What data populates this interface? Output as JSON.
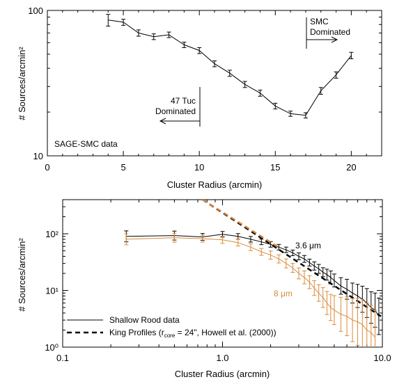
{
  "chart_data": [
    {
      "type": "line",
      "x_scale": "linear",
      "y_scale": "log",
      "xlim": [
        0,
        22
      ],
      "ylim": [
        10,
        100
      ],
      "xlabel": "Cluster Radius (arcmin)",
      "ylabel": "# Sources/arcmin²",
      "xticks": [
        "0",
        "5",
        "10",
        "15",
        "20"
      ],
      "yticks": [
        "10",
        "100"
      ],
      "series": [
        {
          "x": [
            4,
            5,
            6,
            7,
            8,
            9,
            10,
            11,
            12,
            13,
            14,
            15,
            16,
            17,
            18,
            19,
            20
          ],
          "y": [
            86,
            83,
            70,
            66,
            68,
            58,
            53,
            43,
            37,
            31,
            27,
            22,
            19.5,
            19,
            28,
            36,
            49
          ],
          "err": [
            8,
            4,
            3.5,
            3,
            3,
            2.5,
            2.5,
            2,
            1.8,
            1.5,
            1.3,
            1,
            0.8,
            0.8,
            1.5,
            1.8,
            2.5
          ],
          "color": "#000000"
        }
      ],
      "annotations": {
        "smc": [
          "SMC",
          "Dominated"
        ],
        "tuc": [
          "47 Tuc",
          "Dominated"
        ],
        "data_label": "SAGE-SMC data"
      }
    },
    {
      "type": "line",
      "x_scale": "log",
      "y_scale": "log",
      "xlim": [
        0.1,
        10
      ],
      "ylim": [
        1,
        400
      ],
      "xlabel": "Cluster Radius (arcmin)",
      "ylabel": "# Sources/arcmin²",
      "xticks": [
        "0.1",
        "1.0",
        "10.0"
      ],
      "yticks": [
        "10⁰",
        "10¹",
        "10²"
      ],
      "series": [
        {
          "name": "3.6 μm",
          "color": "#000000",
          "x": [
            0.25,
            0.5,
            0.75,
            1.0,
            1.25,
            1.5,
            1.75,
            2.0,
            2.25,
            2.5,
            2.75,
            3.0,
            3.25,
            3.5,
            3.75,
            4.0,
            4.25,
            4.5,
            4.75,
            5.0,
            5.5,
            6.0,
            6.5,
            7.0,
            7.5,
            8.0,
            8.5,
            9.0,
            9.5
          ],
          "y": [
            90,
            93,
            88,
            98,
            90,
            80,
            72,
            65,
            58,
            52,
            46,
            40,
            36,
            31,
            27,
            24,
            21,
            19,
            17,
            15,
            12,
            10.5,
            9,
            8,
            7,
            6,
            5,
            4.5,
            3.5
          ],
          "err_factor": [
            1.25,
            1.2,
            1.15,
            1.12,
            1.12,
            1.12,
            1.12,
            1.12,
            1.12,
            1.12,
            1.12,
            1.15,
            1.15,
            1.15,
            1.18,
            1.2,
            1.2,
            1.25,
            1.3,
            1.3,
            1.4,
            1.5,
            1.5,
            1.6,
            1.7,
            1.8,
            1.9,
            2.0,
            2.1
          ],
          "guide_x": [
            0.75,
            9.8
          ],
          "guide_y": [
            400,
            3.5
          ]
        },
        {
          "name": "8 μm",
          "color": "#d98a3a",
          "x": [
            0.25,
            0.5,
            0.75,
            1.0,
            1.25,
            1.5,
            1.75,
            2.0,
            2.25,
            2.5,
            2.75,
            3.0,
            3.25,
            3.5,
            3.75,
            4.0,
            4.25,
            4.5,
            4.75,
            5.0,
            5.5,
            6.0,
            6.5,
            7.0,
            7.5,
            8.0,
            8.5,
            9.0
          ],
          "y": [
            80,
            85,
            82,
            78,
            70,
            58,
            48,
            42,
            36,
            30,
            25,
            20,
            17,
            14,
            11,
            9,
            7.5,
            6,
            5,
            4.5,
            3.8,
            3.5,
            3,
            2.8,
            2.5,
            2,
            1.8,
            1.5
          ],
          "err_factor": [
            1.25,
            1.2,
            1.15,
            1.15,
            1.15,
            1.15,
            1.15,
            1.18,
            1.18,
            1.2,
            1.2,
            1.25,
            1.3,
            1.3,
            1.35,
            1.4,
            1.5,
            1.6,
            1.7,
            1.8,
            2.0,
            2.2,
            2.4,
            2.6,
            2.8,
            3.0,
            3.0,
            3.0
          ],
          "guide_x": [
            0.75,
            2.2
          ],
          "guide_y": [
            400,
            60
          ]
        }
      ],
      "legend": {
        "placement": "bottom-left",
        "solid_label": "Shallow Rood data",
        "dashed_prefix": "King Profiles (r",
        "dashed_subscript": "core",
        "dashed_suffix": " = 24\", Howell et al. (2000))"
      }
    }
  ]
}
